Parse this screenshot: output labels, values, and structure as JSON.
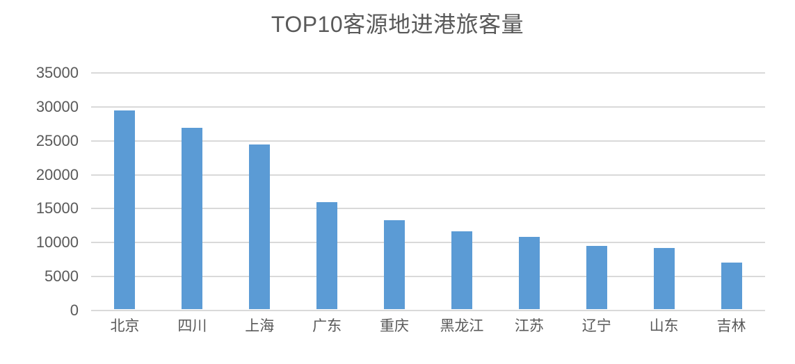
{
  "chart_data": {
    "type": "bar",
    "title": "TOP10客源地进港旅客量",
    "categories": [
      "北京",
      "四川",
      "上海",
      "广东",
      "重庆",
      "黑龙江",
      "江苏",
      "辽宁",
      "山东",
      "吉林"
    ],
    "values": [
      29300,
      26700,
      24300,
      15800,
      13100,
      11500,
      10600,
      9300,
      9000,
      6900
    ],
    "xlabel": "",
    "ylabel": "",
    "ylim": [
      0,
      35000
    ],
    "yticks": [
      0,
      5000,
      10000,
      15000,
      20000,
      25000,
      30000,
      35000
    ],
    "grid": true,
    "legend_position": "none",
    "bar_color": "#5B9BD5",
    "gridline_color": "#D9D9D9",
    "axis_text_color": "#595959",
    "title_color": "#595959",
    "background_color": "#FFFFFF"
  }
}
